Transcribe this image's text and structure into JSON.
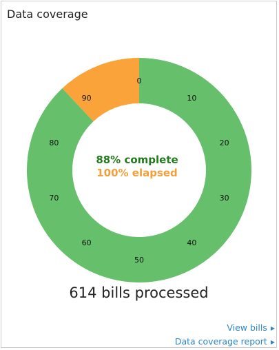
{
  "card": {
    "title": "Data coverage",
    "bills_processed": "614 bills processed"
  },
  "gauge": {
    "complete_text": "88% complete",
    "elapsed_text": "100% elapsed",
    "complete_fraction": 0.88,
    "elapsed_fraction": 1.0,
    "tick_labels": [
      "0",
      "10",
      "20",
      "30",
      "40",
      "50",
      "60",
      "70",
      "80",
      "90"
    ],
    "colors": {
      "complete": "#66bf6a",
      "remaining": "#f9a33a",
      "complete_text": "#237a1e",
      "elapsed_text": "#f3a03c"
    }
  },
  "links": {
    "view_bills": "View bills",
    "coverage_report": "Data coverage report",
    "arrow_icon": "triangle-right-icon"
  }
}
